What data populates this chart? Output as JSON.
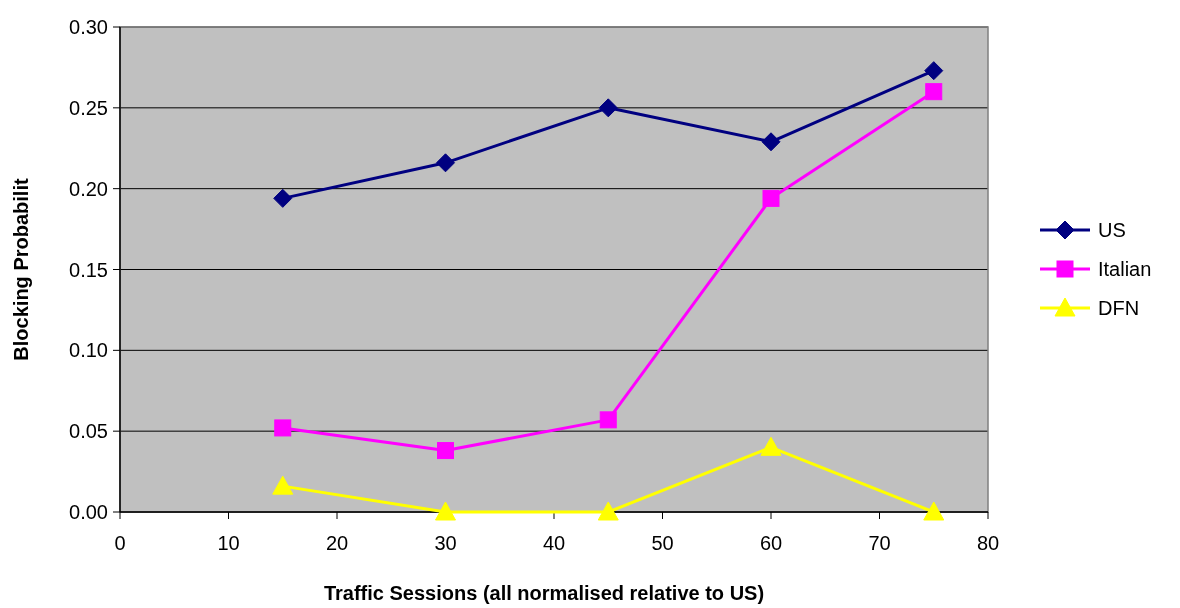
{
  "chart_data": {
    "type": "line",
    "xlabel": "Traffic Sessions (all normalised relative to US)",
    "ylabel": "Blocking Probabilit",
    "x": [
      15,
      30,
      45,
      60,
      75
    ],
    "series": [
      {
        "name": "US",
        "color": "#000080",
        "marker": "diamond",
        "values": [
          0.194,
          0.216,
          0.25,
          0.229,
          0.273
        ]
      },
      {
        "name": "Italian",
        "color": "#ff00ff",
        "marker": "square",
        "values": [
          0.052,
          0.038,
          0.057,
          0.194,
          0.26
        ]
      },
      {
        "name": "DFN",
        "color": "#ffff00",
        "marker": "triangle",
        "values": [
          0.016,
          0,
          0,
          0.04,
          0
        ]
      }
    ],
    "xlim": [
      0,
      80
    ],
    "xticks": [
      0,
      10,
      20,
      30,
      40,
      50,
      60,
      70,
      80
    ],
    "ylim": [
      0,
      0.3
    ],
    "yticks": [
      {
        "value": 0,
        "label": "0.00"
      },
      {
        "value": 0.05,
        "label": "0.05"
      },
      {
        "value": 0.1,
        "label": "0.10"
      },
      {
        "value": 0.15,
        "label": "0.15"
      },
      {
        "value": 0.2,
        "label": "0.20"
      },
      {
        "value": 0.25,
        "label": "0.25"
      },
      {
        "value": 0.3,
        "label": "0.30"
      }
    ],
    "grid": "y",
    "legend": "right",
    "line_style": "solid"
  }
}
